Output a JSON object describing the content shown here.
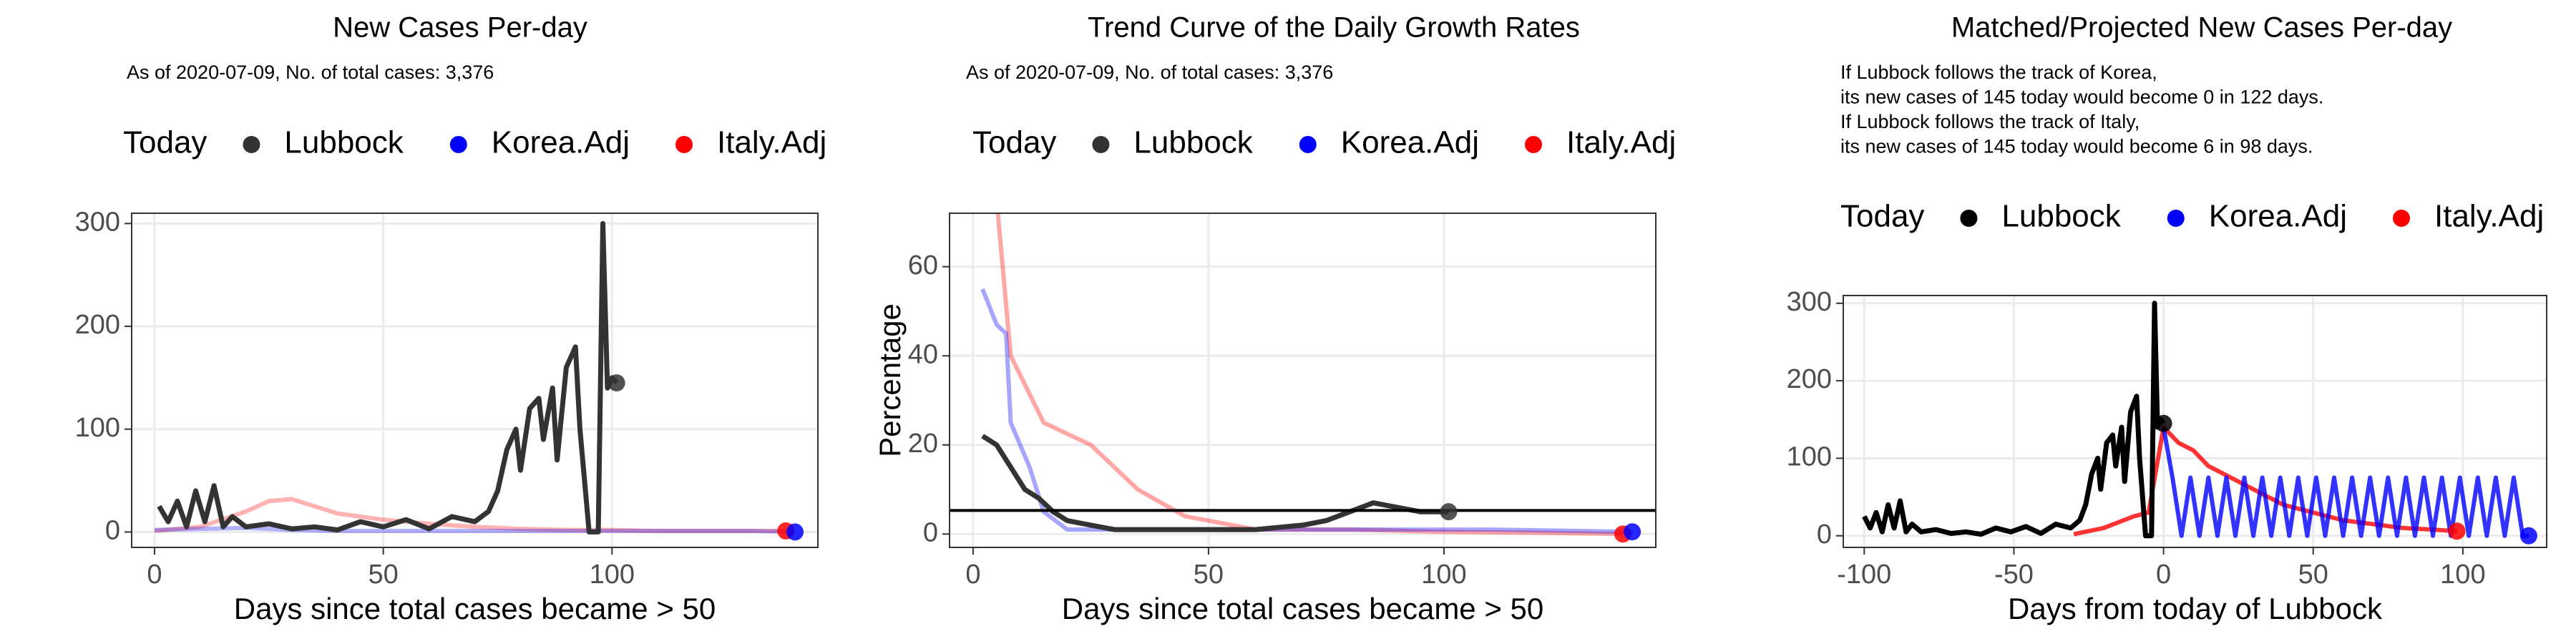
{
  "chart_data": [
    {
      "type": "line",
      "title": "New Cases Per-day",
      "subtitle": "As of 2020-07-09, No. of total cases: 3,376",
      "legend_title": "Today",
      "xlabel": "Days since total cases became > 50",
      "xlim": [
        -5,
        145
      ],
      "xticks": [
        0,
        50,
        100
      ],
      "ylim": [
        -15,
        310
      ],
      "yticks": [
        0,
        100,
        200,
        300
      ],
      "grid": true,
      "line_opacity": 0.3,
      "series": [
        {
          "name": "Lubbock",
          "color": "#333333",
          "x": [
            1,
            3,
            5,
            7,
            9,
            11,
            13,
            15,
            17,
            20,
            25,
            30,
            35,
            40,
            45,
            50,
            55,
            60,
            65,
            70,
            73,
            75,
            77,
            79,
            80,
            82,
            84,
            85,
            87,
            88,
            90,
            92,
            93,
            95,
            96,
            97,
            98,
            99,
            100,
            101
          ],
          "values": [
            25,
            10,
            30,
            5,
            40,
            10,
            45,
            5,
            15,
            5,
            8,
            3,
            5,
            2,
            10,
            5,
            12,
            3,
            15,
            10,
            20,
            40,
            80,
            100,
            60,
            120,
            130,
            90,
            140,
            70,
            160,
            180,
            100,
            0,
            0,
            0,
            300,
            140,
            150,
            145
          ],
          "today_x": 101,
          "today_y": 145
        },
        {
          "name": "Korea.Adj",
          "color": "#0000ff",
          "x": [
            0,
            10,
            20,
            30,
            40,
            50,
            60,
            70,
            80,
            90,
            100,
            110,
            120,
            130,
            140
          ],
          "values": [
            2,
            3,
            4,
            2,
            1,
            1,
            1,
            1,
            1,
            1,
            1,
            1,
            1,
            1,
            0
          ],
          "today_x": 140,
          "today_y": 0
        },
        {
          "name": "Italy.Adj",
          "color": "#ff0000",
          "x": [
            0,
            10,
            20,
            25,
            30,
            35,
            40,
            50,
            60,
            70,
            80,
            90,
            100,
            110,
            120,
            138
          ],
          "values": [
            1,
            5,
            20,
            30,
            32,
            25,
            18,
            12,
            8,
            5,
            3,
            2,
            2,
            1,
            1,
            1
          ],
          "today_x": 138,
          "today_y": 1
        }
      ]
    },
    {
      "type": "line",
      "title": "Trend Curve of the Daily Growth Rates",
      "subtitle": "As of 2020-07-09, No. of total cases: 3,376",
      "legend_title": "Today",
      "xlabel": "Days since total cases became > 50",
      "ylabel": "Percentage",
      "xlim": [
        -5,
        145
      ],
      "xticks": [
        0,
        50,
        100
      ],
      "ylim": [
        -3,
        72
      ],
      "yticks": [
        0,
        20,
        40,
        60
      ],
      "grid": true,
      "line_opacity": 0.35,
      "reference_line": 5.3,
      "series": [
        {
          "name": "Lubbock",
          "color": "#333333",
          "x": [
            2,
            5,
            8,
            11,
            14,
            17,
            20,
            25,
            30,
            40,
            50,
            60,
            70,
            75,
            80,
            85,
            90,
            95,
            101
          ],
          "values": [
            22,
            20,
            15,
            10,
            8,
            5,
            3,
            2,
            1,
            1,
            1,
            1,
            2,
            3,
            5,
            7,
            6,
            5,
            5
          ],
          "today_x": 101,
          "today_y": 5
        },
        {
          "name": "Korea.Adj",
          "color": "#0000ff",
          "x": [
            2,
            5,
            7,
            8,
            12,
            15,
            20,
            30,
            50,
            80,
            110,
            140
          ],
          "values": [
            55,
            47,
            45,
            25,
            15,
            5,
            1,
            1,
            1,
            1,
            1,
            0.5
          ],
          "today_x": 140,
          "today_y": 0.5
        },
        {
          "name": "Italy.Adj",
          "color": "#ff0000",
          "x": [
            5,
            8,
            15,
            25,
            35,
            45,
            60,
            80,
            100,
            120,
            138
          ],
          "values": [
            75,
            40,
            25,
            20,
            10,
            4,
            1,
            1,
            0.5,
            0.3,
            0
          ],
          "today_x": 138,
          "today_y": 0
        }
      ]
    },
    {
      "type": "line",
      "title": "Matched/Projected New Cases Per-day",
      "notes": [
        "If Lubbock follows the track of Korea,",
        "its new cases of 145 today would become 0 in 122 days.",
        "If Lubbock follows the track of Italy,",
        "its new cases of 145 today would become 6 in 98 days."
      ],
      "legend_title": "Today",
      "xlabel": "Days from today of Lubbock",
      "xlim": [
        -107,
        128
      ],
      "xticks": [
        -100,
        -50,
        0,
        50,
        100
      ],
      "ylim": [
        -15,
        310
      ],
      "yticks": [
        0,
        100,
        200,
        300
      ],
      "grid": true,
      "line_opacity": 0.8,
      "series": [
        {
          "name": "Lubbock",
          "color": "#000000",
          "x": [
            -100,
            -98,
            -96,
            -94,
            -92,
            -90,
            -88,
            -86,
            -84,
            -81,
            -76,
            -71,
            -66,
            -61,
            -56,
            -51,
            -46,
            -41,
            -36,
            -31,
            -28,
            -26,
            -24,
            -22,
            -21,
            -19,
            -17,
            -16,
            -14,
            -13,
            -11,
            -9,
            -8,
            -6,
            -5,
            -4,
            -3,
            -2,
            -1,
            0
          ],
          "values": [
            25,
            10,
            30,
            5,
            40,
            10,
            45,
            5,
            15,
            5,
            8,
            3,
            5,
            2,
            10,
            5,
            12,
            3,
            15,
            10,
            20,
            40,
            80,
            100,
            60,
            120,
            130,
            90,
            140,
            70,
            160,
            180,
            100,
            0,
            0,
            0,
            300,
            140,
            150,
            145
          ],
          "today_x": 0,
          "today_y": 145
        },
        {
          "name": "Korea.Adj",
          "color": "#0000ff",
          "x": [
            0,
            3,
            6,
            9,
            12,
            15,
            18,
            21,
            24,
            27,
            30,
            33,
            36,
            39,
            42,
            45,
            48,
            51,
            54,
            57,
            60,
            63,
            66,
            69,
            72,
            75,
            78,
            81,
            84,
            87,
            90,
            93,
            96,
            99,
            102,
            105,
            108,
            111,
            114,
            117,
            120,
            122
          ],
          "values": [
            140,
            75,
            0,
            75,
            0,
            75,
            0,
            75,
            0,
            75,
            0,
            75,
            0,
            75,
            0,
            75,
            0,
            75,
            0,
            75,
            0,
            75,
            0,
            75,
            0,
            75,
            0,
            75,
            0,
            75,
            0,
            75,
            0,
            75,
            0,
            75,
            0,
            75,
            0,
            75,
            0,
            0
          ],
          "today_x": 122,
          "today_y": 0
        },
        {
          "name": "Italy.Adj",
          "color": "#ff0000",
          "x": [
            -30,
            -20,
            -10,
            -5,
            0,
            5,
            10,
            15,
            20,
            30,
            40,
            50,
            60,
            70,
            80,
            90,
            98
          ],
          "values": [
            2,
            10,
            25,
            30,
            140,
            120,
            110,
            90,
            80,
            60,
            40,
            30,
            20,
            15,
            10,
            8,
            6
          ],
          "today_x": 98,
          "today_y": 6
        }
      ]
    }
  ]
}
